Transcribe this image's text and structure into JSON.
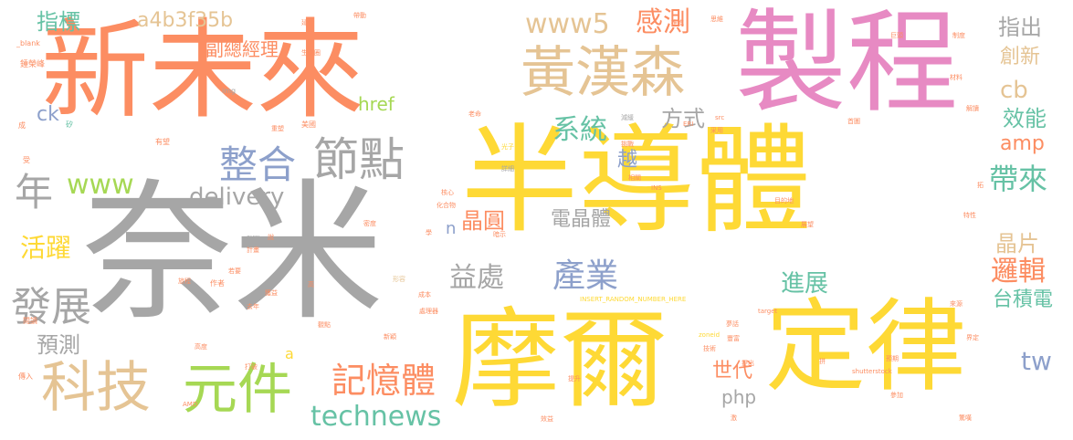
{
  "palette": {
    "gray": "#a6a6a6",
    "yellow": "#fed935",
    "orange": "#fc8d62",
    "pink": "#e78ac3",
    "tan": "#e5c494",
    "green": "#a6d854",
    "teal": "#66c2a5",
    "blue": "#8da0cb"
  },
  "words": [
    {
      "text": "奈米",
      "color": "gray"
    },
    {
      "text": "半導體",
      "color": "yellow"
    },
    {
      "text": "新未來",
      "color": "orange"
    },
    {
      "text": "製程",
      "color": "pink"
    },
    {
      "text": "摩爾",
      "color": "yellow"
    },
    {
      "text": "定律",
      "color": "yellow"
    },
    {
      "text": "黃漢森",
      "color": "tan"
    },
    {
      "text": "科技",
      "color": "tan"
    },
    {
      "text": "元件",
      "color": "green"
    },
    {
      "text": "節點",
      "color": "gray"
    },
    {
      "text": "整合",
      "color": "blue"
    },
    {
      "text": "年",
      "color": "gray"
    },
    {
      "text": "發展",
      "color": "gray"
    },
    {
      "text": "記憶體",
      "color": "orange"
    },
    {
      "text": "technews",
      "color": "teal"
    },
    {
      "text": "www5",
      "color": "tan"
    },
    {
      "text": "感測",
      "color": "orange"
    },
    {
      "text": "系統",
      "color": "teal"
    },
    {
      "text": "產業",
      "color": "blue"
    },
    {
      "text": "益處",
      "color": "gray"
    },
    {
      "text": "www",
      "color": "green"
    },
    {
      "text": "delivery",
      "color": "gray"
    },
    {
      "text": "a4b3f35b",
      "color": "tan"
    },
    {
      "text": "指標",
      "color": "teal"
    },
    {
      "text": "副總經理",
      "color": "orange"
    },
    {
      "text": "活躍",
      "color": "yellow"
    },
    {
      "text": "預測",
      "color": "gray"
    },
    {
      "text": "href",
      "color": "green"
    },
    {
      "text": "ck",
      "color": "blue"
    },
    {
      "text": "方式",
      "color": "gray"
    },
    {
      "text": "越",
      "color": "blue"
    },
    {
      "text": "晶圓",
      "color": "orange"
    },
    {
      "text": "n",
      "color": "blue"
    },
    {
      "text": "電晶體",
      "color": "gray"
    },
    {
      "text": "帶來",
      "color": "teal"
    },
    {
      "text": "晶片",
      "color": "tan"
    },
    {
      "text": "邏輯",
      "color": "orange"
    },
    {
      "text": "進展",
      "color": "teal"
    },
    {
      "text": "台積電",
      "color": "teal"
    },
    {
      "text": "指出",
      "color": "gray"
    },
    {
      "text": "創新",
      "color": "tan"
    },
    {
      "text": "cb",
      "color": "tan"
    },
    {
      "text": "效能",
      "color": "teal"
    },
    {
      "text": "amp",
      "color": "orange"
    },
    {
      "text": "tw",
      "color": "blue"
    },
    {
      "text": "世代",
      "color": "orange"
    },
    {
      "text": "php",
      "color": "gray"
    },
    {
      "text": "a",
      "color": "yellow"
    },
    {
      "text": "_blank",
      "color": "orange"
    },
    {
      "text": "鍾榮峰",
      "color": "orange"
    },
    {
      "text": "成",
      "color": "orange"
    },
    {
      "text": "受",
      "color": "orange"
    },
    {
      "text": "有望",
      "color": "orange"
    },
    {
      "text": "矽",
      "color": "teal"
    },
    {
      "text": "img",
      "color": "gray"
    },
    {
      "text": "生態圈",
      "color": "orange"
    },
    {
      "text": "延伸",
      "color": "orange"
    },
    {
      "text": "帶動",
      "color": "orange"
    },
    {
      "text": "美國",
      "color": "orange"
    },
    {
      "text": "形容",
      "color": "tan"
    },
    {
      "text": "老命",
      "color": "orange"
    },
    {
      "text": "減緩",
      "color": "gray"
    },
    {
      "text": "光子",
      "color": "yellow"
    },
    {
      "text": "挑戰",
      "color": "orange"
    },
    {
      "text": "詳細",
      "color": "gray"
    },
    {
      "text": "相關",
      "color": "orange"
    },
    {
      "text": "核心",
      "color": "orange"
    },
    {
      "text": "化合物",
      "color": "orange"
    },
    {
      "text": "密度",
      "color": "orange"
    },
    {
      "text": "計畫",
      "color": "orange"
    },
    {
      "text": "閱讀",
      "color": "orange"
    },
    {
      "text": "作者",
      "color": "orange"
    },
    {
      "text": "若要",
      "color": "orange"
    },
    {
      "text": "獲益",
      "color": "orange"
    },
    {
      "text": "高",
      "color": "orange"
    },
    {
      "text": "成本",
      "color": "orange"
    },
    {
      "text": "處理器",
      "color": "orange"
    },
    {
      "text": "觀點",
      "color": "orange"
    },
    {
      "text": "去年",
      "color": "orange"
    },
    {
      "text": "新穎",
      "color": "orange"
    },
    {
      "text": "高度",
      "color": "orange"
    },
    {
      "text": "打破",
      "color": "orange"
    },
    {
      "text": "傳入",
      "color": "orange"
    },
    {
      "text": "AMD",
      "color": "orange"
    },
    {
      "text": "效益",
      "color": "orange"
    },
    {
      "text": "提升",
      "color": "orange"
    },
    {
      "text": "技術",
      "color": "orange"
    },
    {
      "text": "豐富",
      "color": "orange"
    },
    {
      "text": "提出",
      "color": "orange"
    },
    {
      "text": "夢話",
      "color": "orange"
    },
    {
      "text": "zoneid",
      "color": "yellow"
    },
    {
      "text": "INSERT_RANDOM_NUMBER_HERE",
      "color": "yellow"
    },
    {
      "text": "暗示",
      "color": "orange"
    },
    {
      "text": "拼",
      "color": "orange"
    },
    {
      "text": "預期",
      "color": "orange"
    },
    {
      "text": "shutterstock",
      "color": "orange"
    },
    {
      "text": "參加",
      "color": "orange"
    },
    {
      "text": "激",
      "color": "orange"
    },
    {
      "text": "驚嘆",
      "color": "orange"
    },
    {
      "text": "來源",
      "color": "orange"
    },
    {
      "text": "界定",
      "color": "orange"
    },
    {
      "text": "target",
      "color": "orange"
    },
    {
      "text": "avw",
      "color": "gray"
    },
    {
      "text": "說",
      "color": "orange"
    },
    {
      "text": "學",
      "color": "orange"
    },
    {
      "text": "INS",
      "color": "orange"
    },
    {
      "text": "目的地",
      "color": "orange"
    },
    {
      "text": "展望",
      "color": "orange"
    },
    {
      "text": "特性",
      "color": "orange"
    },
    {
      "text": "拓",
      "color": "orange"
    },
    {
      "text": "ERI",
      "color": "orange"
    },
    {
      "text": "采用",
      "color": "orange"
    },
    {
      "text": "src",
      "color": "orange"
    },
    {
      "text": "首圖",
      "color": "orange"
    },
    {
      "text": "思維",
      "color": "orange"
    },
    {
      "text": "巨頭",
      "color": "orange"
    },
    {
      "text": "制度",
      "color": "orange"
    },
    {
      "text": "材料",
      "color": "orange"
    },
    {
      "text": "解讀",
      "color": "orange"
    },
    {
      "text": "推進",
      "color": "orange"
    },
    {
      "text": "重塑",
      "color": "orange"
    },
    {
      "text": "旅程",
      "color": "orange"
    }
  ]
}
